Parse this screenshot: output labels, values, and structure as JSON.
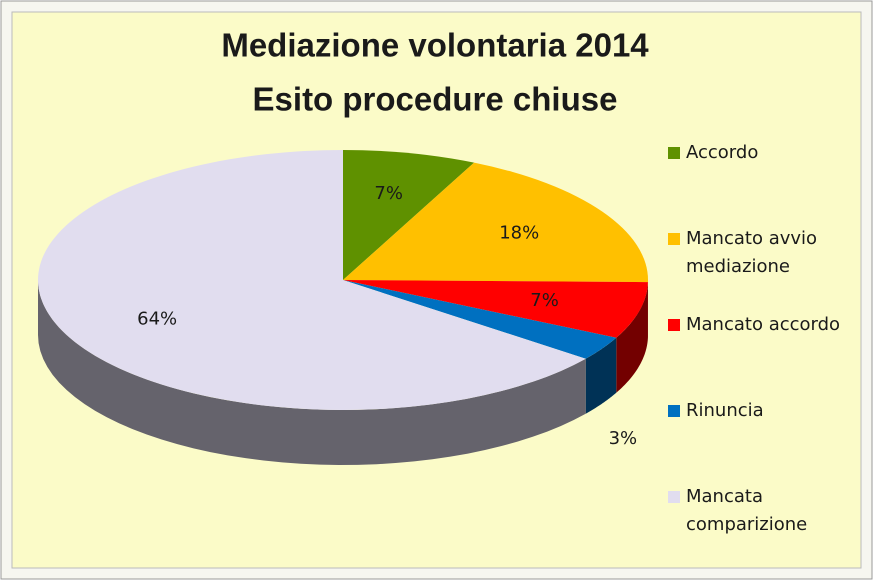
{
  "chart_data": {
    "type": "pie3d",
    "title": [
      "Mediazione volontaria 2014",
      "Esito procedure chiuse"
    ],
    "categories": [
      "Accordo",
      "Mancato avvio mediazione",
      "Mancato accordo",
      "Rinuncia",
      "Mancata comparizione"
    ],
    "values": [
      7,
      18,
      7,
      3,
      64
    ],
    "value_labels": [
      "7%",
      "18%",
      "7%",
      "3%",
      "64%"
    ],
    "colors": [
      "#5f9100",
      "#ffc000",
      "#ff0000",
      "#0070c0",
      "#e1ddef"
    ],
    "legend": "right"
  }
}
